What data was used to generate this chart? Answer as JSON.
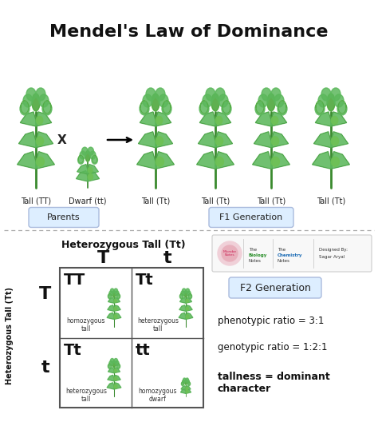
{
  "title": "Mendel's Law of Dominance",
  "title_fontsize": 16,
  "bg_color": "#ffffff",
  "plant_labels": [
    "Tall (TT)",
    "Dwarf (tt)",
    "Tall (Tt)",
    "Tall (Tt)",
    "Tall (Tt)",
    "Tall (Tt)"
  ],
  "parents_label": "Parents",
  "f1_label": "F1 Generation",
  "f2_label": "F2 Generation",
  "punnett_title": "Heterozygous Tall (Tt)",
  "punnett_cells": [
    [
      "TT",
      "Tt"
    ],
    [
      "Tt",
      "tt"
    ]
  ],
  "punnett_cell_sub": [
    [
      "homozygous\ntall",
      "heterozygous\ntall"
    ],
    [
      "heterozygous\ntall",
      "homozygous\ndwarf"
    ]
  ],
  "y_axis_label": "Heterozygous Tall (Tt)",
  "phenotypic_ratio": "phenotypic ratio = 3:1",
  "genotypic_ratio": "genotypic ratio = 1:2:1",
  "conclusion": "tallness = dominant\ncharacter",
  "plant_green_dark": "#3a8a2e",
  "plant_green_mid": "#4fa83d",
  "plant_green_light": "#6ec055",
  "plant_green_leaf": "#5cb85c",
  "separator_color": "#aaaaaa",
  "label_bg": "#ddeeff",
  "label_border": "#aabbdd",
  "grid_border": "#555555",
  "text_dark": "#111111",
  "text_mid": "#333333"
}
